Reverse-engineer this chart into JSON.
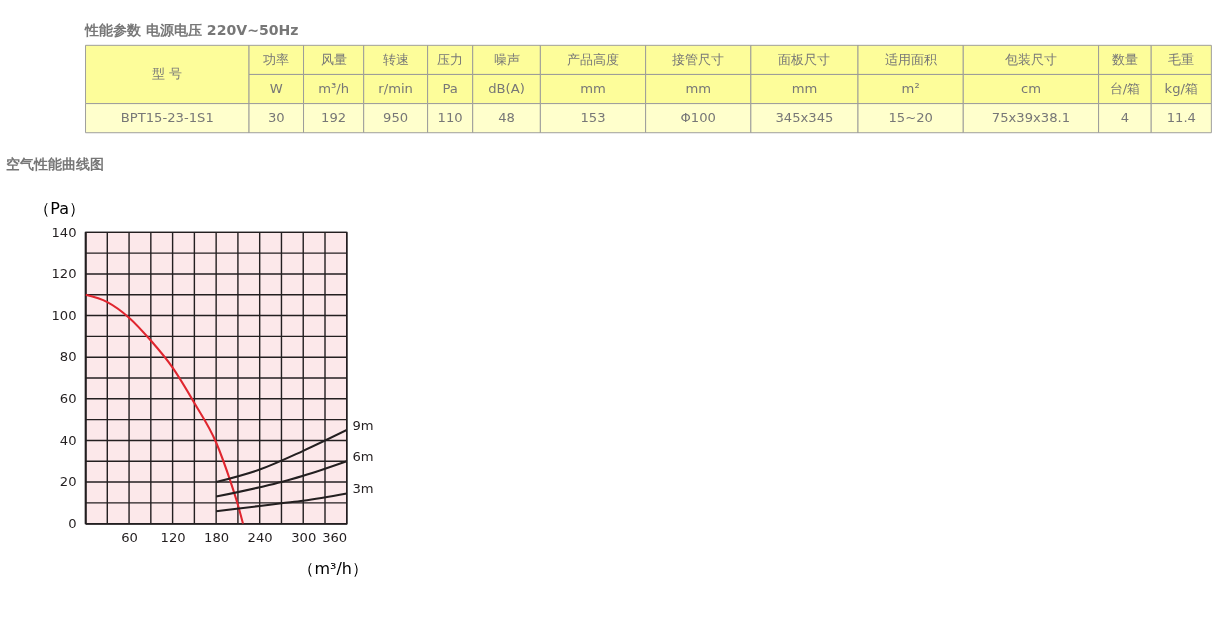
{
  "chart_data": [
    {
      "type": "other",
      "title": "性能参数 电源电压  220V~50Hz",
      "annotations": [
        "型 号",
        "功率",
        "风量",
        "转速",
        "压力",
        "噪声",
        "产品高度",
        "接管尺寸",
        "面板尺寸",
        "适用面积",
        "包装尺寸",
        "数量",
        "毛重",
        "W",
        "m³/h",
        "r/min",
        "Pa",
        "dB(A)",
        "mm",
        "mm",
        "mm",
        "m²",
        "cm",
        "台/箱",
        "kg/箱",
        "BPT15-23-1S1",
        "30",
        "192",
        "950",
        "110",
        "48",
        "153",
        "Φ100",
        "345x345",
        "15~20",
        "75x39x38.1",
        "4",
        "11.4"
      ]
    },
    {
      "type": "line",
      "title": "空气性能曲线图",
      "xlabel": "（m³/h）",
      "ylabel": "（Pa）",
      "xlim": [
        0,
        360
      ],
      "ylim": [
        0,
        140
      ],
      "xticks": [
        {
          "value": 0,
          "label": null
        },
        {
          "value": 30,
          "label": null
        },
        60,
        {
          "value": 90,
          "label": null
        },
        120,
        {
          "value": 150,
          "label": null
        },
        180,
        {
          "value": 210,
          "label": null
        },
        240,
        {
          "value": 270,
          "label": null
        },
        300,
        {
          "value": 330,
          "label": null
        },
        360
      ],
      "yticks": [
        0,
        {
          "value": 10,
          "label": null
        },
        20,
        {
          "value": 30,
          "label": null
        },
        40,
        {
          "value": 50,
          "label": null
        },
        60,
        {
          "value": 70,
          "label": null
        },
        80,
        {
          "value": 90,
          "label": null
        },
        100,
        {
          "value": 110,
          "label": null
        },
        120,
        {
          "value": 130,
          "label": null
        },
        140
      ],
      "grid": true,
      "marker": "none",
      "line_style": "solid",
      "series": [
        {
          "color": "#e0262f",
          "x": [
            0,
            30,
            60,
            90,
            120,
            150,
            180,
            200,
            210,
            217
          ],
          "values": [
            110,
            106.5,
            99,
            88,
            75,
            58,
            39,
            20,
            9,
            0
          ]
        },
        {
          "name": "9m",
          "color": "#231f20",
          "x": [
            180,
            240,
            300,
            360
          ],
          "values": [
            20,
            26,
            35,
            45
          ]
        },
        {
          "name": "6m",
          "color": "#231f20",
          "x": [
            180,
            240,
            270,
            300,
            360
          ],
          "values": [
            13,
            17.5,
            20,
            23,
            30
          ]
        },
        {
          "name": "3m",
          "color": "#231f20",
          "x": [
            180,
            240,
            270,
            300,
            360
          ],
          "values": [
            6,
            8.5,
            9.8,
            11,
            14.5
          ]
        }
      ]
    }
  ]
}
